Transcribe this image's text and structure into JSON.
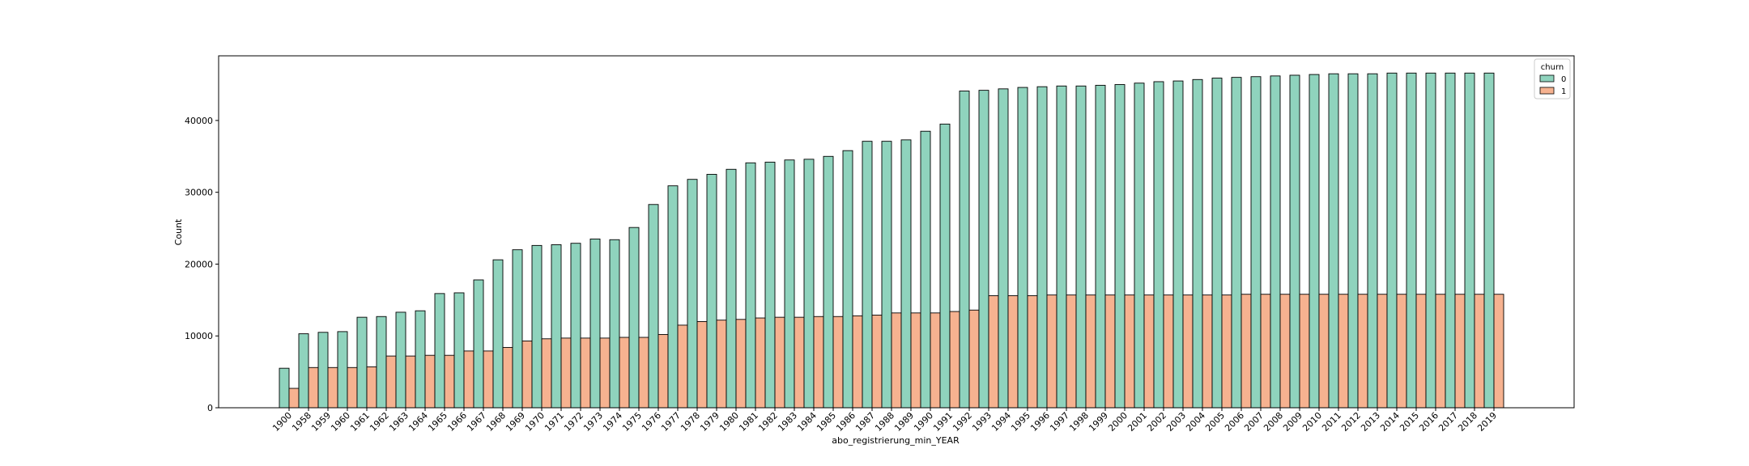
{
  "chart_data": {
    "type": "bar",
    "xlabel": "abo_registrierung_min_YEAR",
    "ylabel": "Count",
    "ylim": [
      0,
      49000
    ],
    "yticks": [
      0,
      10000,
      20000,
      30000,
      40000
    ],
    "grid": false,
    "legend": {
      "title": "churn",
      "placement": "top-right"
    },
    "categories": [
      "1900",
      "1958",
      "1959",
      "1960",
      "1961",
      "1962",
      "1963",
      "1964",
      "1965",
      "1966",
      "1967",
      "1968",
      "1969",
      "1970",
      "1971",
      "1972",
      "1973",
      "1974",
      "1975",
      "1976",
      "1977",
      "1978",
      "1979",
      "1980",
      "1981",
      "1982",
      "1983",
      "1984",
      "1985",
      "1986",
      "1987",
      "1988",
      "1989",
      "1990",
      "1991",
      "1992",
      "1993",
      "1994",
      "1995",
      "1996",
      "1997",
      "1998",
      "1999",
      "2000",
      "2001",
      "2002",
      "2003",
      "2004",
      "2005",
      "2006",
      "2007",
      "2008",
      "2009",
      "2010",
      "2011",
      "2012",
      "2013",
      "2014",
      "2015",
      "2016",
      "2017",
      "2018",
      "2019"
    ],
    "series": [
      {
        "name": "0",
        "color": "#8fd3bd",
        "values": [
          5500,
          10300,
          10500,
          10600,
          12600,
          12700,
          13300,
          13500,
          15900,
          16000,
          17800,
          20600,
          22000,
          22600,
          22700,
          22900,
          23500,
          23400,
          25100,
          28300,
          30900,
          31800,
          32500,
          33200,
          34100,
          34200,
          34500,
          34600,
          35000,
          35800,
          37100,
          37100,
          37300,
          38500,
          39500,
          44100,
          44200,
          44400,
          44600,
          44700,
          44800,
          44800,
          44900,
          45000,
          45200,
          45400,
          45500,
          45700,
          45900,
          46000,
          46100,
          46200,
          46300,
          46400,
          46500,
          46500,
          46500,
          46600,
          46600,
          46600,
          46600,
          46600,
          46600
        ]
      },
      {
        "name": "1",
        "color": "#f6b290",
        "values": [
          2700,
          5600,
          5600,
          5600,
          5700,
          7200,
          7200,
          7300,
          7300,
          7900,
          7900,
          8400,
          9300,
          9600,
          9700,
          9700,
          9700,
          9800,
          9800,
          10200,
          11500,
          12000,
          12200,
          12300,
          12500,
          12600,
          12600,
          12700,
          12700,
          12800,
          12900,
          13200,
          13200,
          13200,
          13400,
          13600,
          15600,
          15600,
          15600,
          15700,
          15700,
          15700,
          15700,
          15700,
          15700,
          15700,
          15700,
          15700,
          15700,
          15800,
          15800,
          15800,
          15800,
          15800,
          15800,
          15800,
          15800,
          15800,
          15800,
          15800,
          15800,
          15800,
          15800
        ]
      }
    ]
  }
}
